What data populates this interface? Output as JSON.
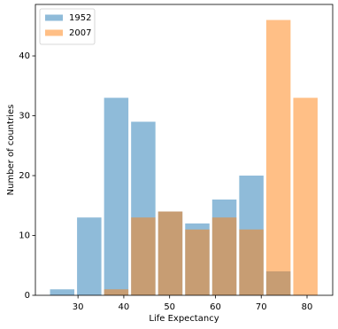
{
  "chart_data": {
    "type": "histogram",
    "xlabel": "Life Expectancy",
    "ylabel": "Number of countries",
    "bins": [
      23.6,
      29.5,
      35.4,
      41.3,
      47.2,
      53.1,
      59.0,
      64.9,
      70.8,
      76.7,
      82.6
    ],
    "series": [
      {
        "name": "1952",
        "color": "#1f77b4",
        "values": [
          1,
          13,
          33,
          29,
          14,
          12,
          16,
          20,
          4,
          0
        ]
      },
      {
        "name": "2007",
        "color": "#ff7f0e",
        "values": [
          0,
          0,
          1,
          13,
          14,
          11,
          13,
          11,
          46,
          33
        ]
      }
    ],
    "opacity": 0.5,
    "xlim": [
      20.7,
      85.6
    ],
    "xticks": [
      30,
      40,
      50,
      60,
      70,
      80
    ],
    "ylim": [
      0,
      48.6
    ],
    "yticks": [
      0,
      10,
      20,
      30,
      40
    ],
    "legend": "upper left"
  }
}
